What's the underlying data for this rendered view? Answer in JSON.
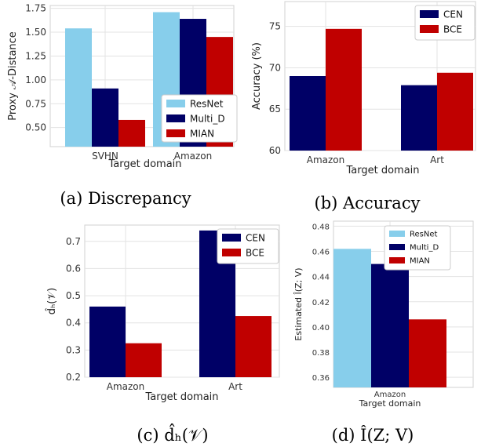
{
  "chart_data": [
    {
      "type": "bar",
      "caption": "(a) Discrepancy",
      "xlabel": "Target domain",
      "ylabel": "Proxy 𝒜-Distance",
      "categories": [
        "SVHN",
        "Amazon"
      ],
      "series": [
        {
          "name": "ResNet",
          "values": [
            1.54,
            1.71
          ]
        },
        {
          "name": "Multi_D",
          "values": [
            0.91,
            1.64
          ]
        },
        {
          "name": "MIAN",
          "values": [
            0.58,
            1.45
          ]
        }
      ],
      "ylim": [
        0.3,
        1.78
      ],
      "yticks": [
        "0.50",
        "0.75",
        "1.00",
        "1.25",
        "1.50",
        "1.75"
      ],
      "legend": "lower-right"
    },
    {
      "type": "bar",
      "caption": "(b) Accuracy",
      "xlabel": "Target domain",
      "ylabel": "Accuracy (%)",
      "categories": [
        "Amazon",
        "Art"
      ],
      "series": [
        {
          "name": "CEN",
          "values": [
            69.0,
            67.9
          ]
        },
        {
          "name": "BCE",
          "values": [
            74.7,
            69.4
          ]
        }
      ],
      "ylim": [
        60,
        78
      ],
      "yticks": [
        "60",
        "65",
        "70",
        "75"
      ],
      "legend": "top-right"
    },
    {
      "type": "bar",
      "caption": "(c) d̂ₕ(𝒱)",
      "xlabel": "Target domain",
      "ylabel": "d̂ₕ(𝒱)",
      "categories": [
        "Amazon",
        "Art"
      ],
      "series": [
        {
          "name": "CEN",
          "values": [
            0.46,
            0.74
          ]
        },
        {
          "name": "BCE",
          "values": [
            0.325,
            0.425
          ]
        }
      ],
      "ylim": [
        0.2,
        0.76
      ],
      "yticks": [
        "0.2",
        "0.3",
        "0.4",
        "0.5",
        "0.6",
        "0.7"
      ],
      "legend": "top-right"
    },
    {
      "type": "bar",
      "caption": "(d) Î(Z; V)",
      "xlabel": "Target domain",
      "ylabel": "Estimated Î(Z; V)",
      "categories": [
        "Amazon"
      ],
      "series": [
        {
          "name": "ResNet",
          "values": [
            0.462
          ]
        },
        {
          "name": "Multi_D",
          "values": [
            0.45
          ]
        },
        {
          "name": "MIAN",
          "values": [
            0.406
          ]
        }
      ],
      "ylim": [
        0.352,
        0.484
      ],
      "yticks": [
        "0.36",
        "0.38",
        "0.40",
        "0.42",
        "0.44",
        "0.46",
        "0.48"
      ],
      "legend": "top-right"
    }
  ],
  "colors": {
    "ResNet": "#87ceeb",
    "Multi_D": "#000066",
    "MIAN": "#c00000",
    "CEN": "#000066",
    "BCE": "#c00000"
  },
  "grid": true
}
